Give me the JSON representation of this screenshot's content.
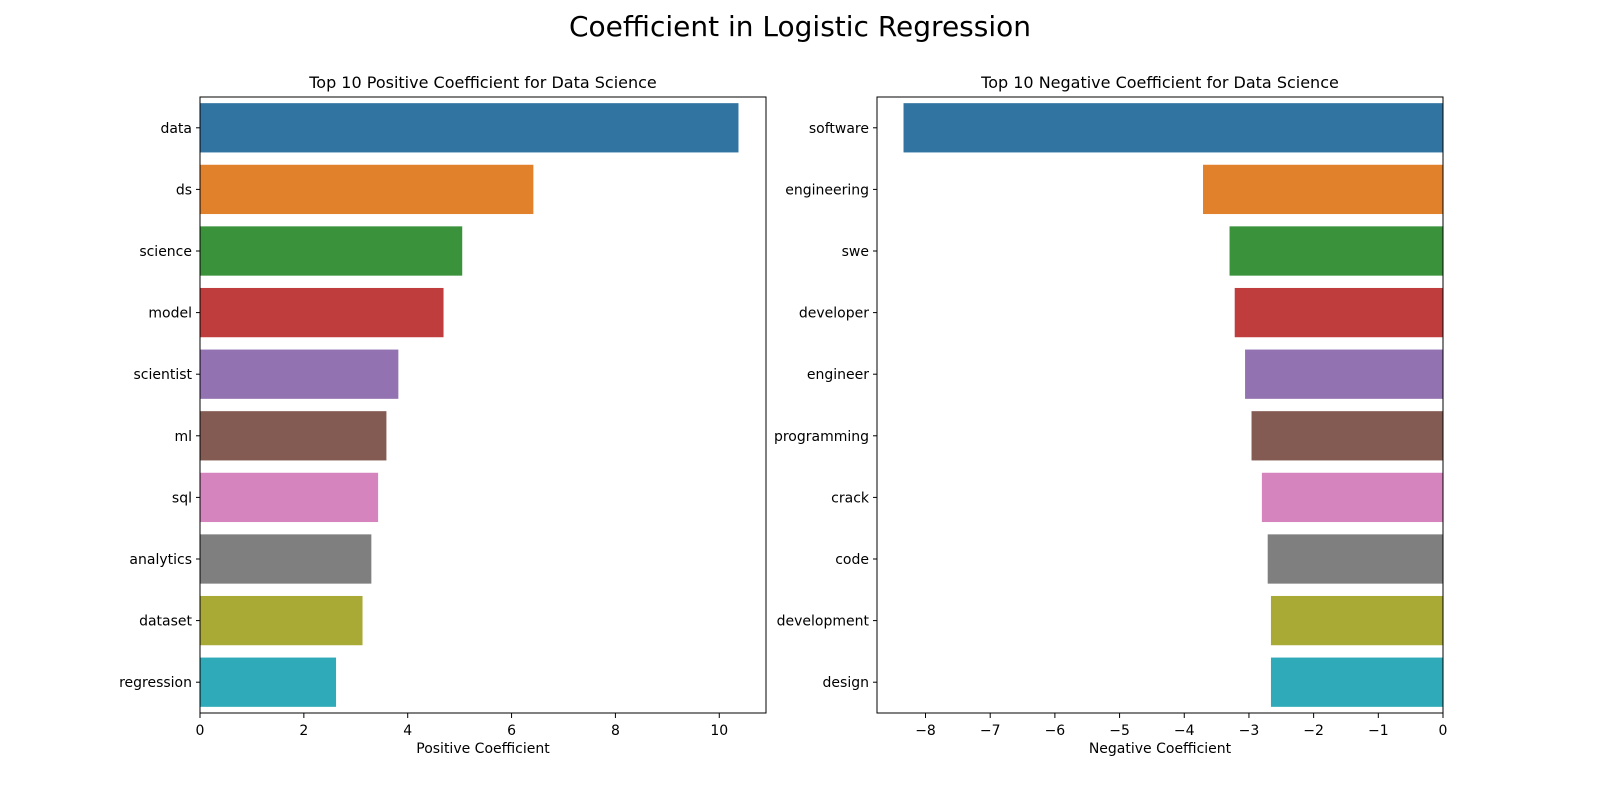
{
  "suptitle": "Coefficient in Logistic Regression",
  "chart_data": [
    {
      "type": "bar",
      "orientation": "horizontal",
      "title": "Top 10 Positive Coefficient for Data Science",
      "xlabel": "Positive Coefficient",
      "ylabel": "",
      "xlim": [
        0,
        10.9
      ],
      "xticks": [
        0,
        2,
        4,
        6,
        8,
        10
      ],
      "xtick_labels": [
        "0",
        "2",
        "4",
        "6",
        "8",
        "10"
      ],
      "grid": false,
      "categories": [
        "data",
        "ds",
        "science",
        "model",
        "scientist",
        "ml",
        "sql",
        "analytics",
        "dataset",
        "regression"
      ],
      "values": [
        10.37,
        6.42,
        5.05,
        4.69,
        3.82,
        3.59,
        3.43,
        3.3,
        3.13,
        2.62
      ],
      "colors": [
        "#3274a1",
        "#e1812c",
        "#3a923a",
        "#c03d3e",
        "#9372b2",
        "#845b53",
        "#d684bd",
        "#7f7f7f",
        "#a9aa35",
        "#2eaab8"
      ]
    },
    {
      "type": "bar",
      "orientation": "horizontal",
      "title": "Top 10 Negative Coefficient for Data Science",
      "xlabel": "Negative Coefficient",
      "ylabel": "",
      "xlim": [
        -8.75,
        0
      ],
      "xticks": [
        -8,
        -7,
        -6,
        -5,
        -4,
        -3,
        -2,
        -1,
        0
      ],
      "xtick_labels": [
        "−8",
        "−7",
        "−6",
        "−5",
        "−4",
        "−3",
        "−2",
        "−1",
        "0"
      ],
      "grid": false,
      "categories": [
        "software",
        "engineering",
        "swe",
        "developer",
        "engineer",
        "programming",
        "crack",
        "code",
        "development",
        "design"
      ],
      "values": [
        -8.34,
        -3.71,
        -3.3,
        -3.22,
        -3.06,
        -2.96,
        -2.8,
        -2.71,
        -2.66,
        -2.66
      ],
      "colors": [
        "#3274a1",
        "#e1812c",
        "#3a923a",
        "#c03d3e",
        "#9372b2",
        "#845b53",
        "#d684bd",
        "#7f7f7f",
        "#a9aa35",
        "#2eaab8"
      ]
    }
  ]
}
